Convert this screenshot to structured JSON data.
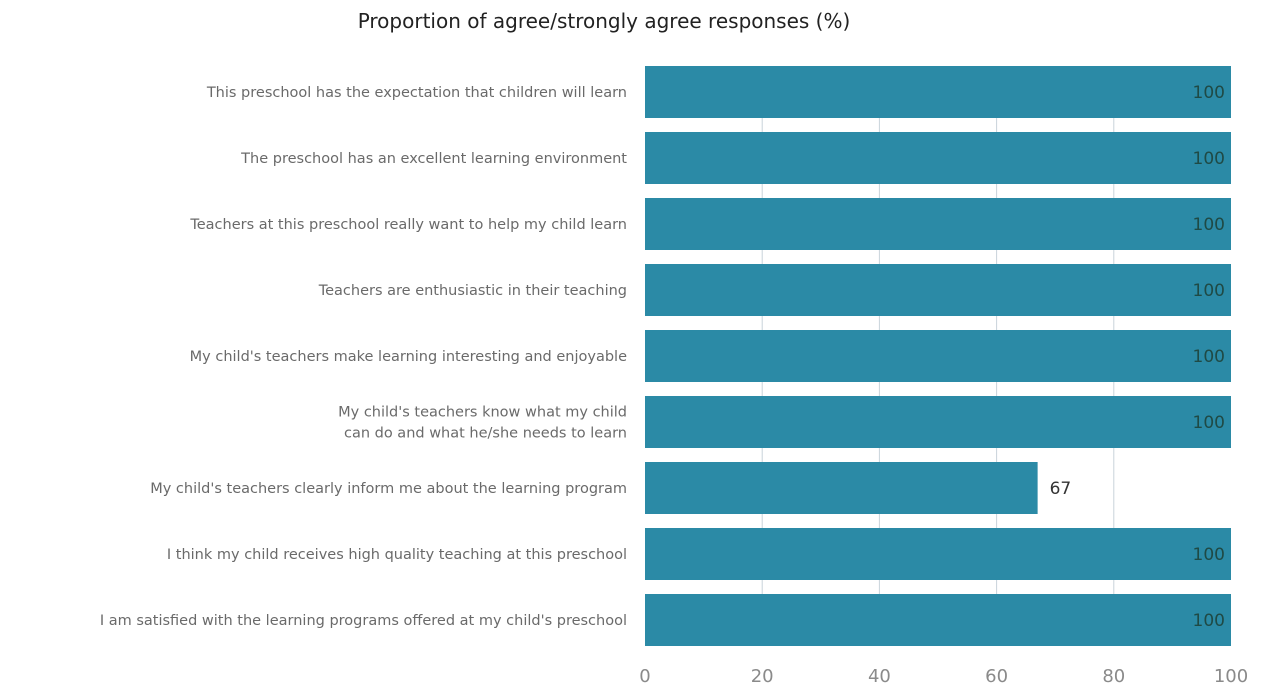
{
  "chart_data": {
    "type": "bar",
    "orientation": "horizontal",
    "title": "Proportion of agree/strongly agree responses (%)",
    "xlabel": "",
    "ylabel": "",
    "categories": [
      [
        "This preschool has the expectation that children will learn"
      ],
      [
        "The preschool has an excellent learning environment"
      ],
      [
        "Teachers at this preschool really want to help my child learn"
      ],
      [
        "Teachers are enthusiastic in their teaching"
      ],
      [
        "My child's teachers make learning interesting and enjoyable"
      ],
      [
        "My child's teachers know what my child",
        "can do and what he/she needs to learn"
      ],
      [
        "My child's teachers clearly inform me about the learning program"
      ],
      [
        "I think my child receives high quality teaching at this preschool"
      ],
      [
        "I am satisfied with the learning programs offered at my child's preschool"
      ]
    ],
    "values": [
      100,
      100,
      100,
      100,
      100,
      100,
      67,
      100,
      100
    ],
    "xlim": [
      0,
      100
    ],
    "xticks": [
      "0",
      "20",
      "40",
      "60",
      "80",
      "100"
    ],
    "grid": true,
    "legend": "none",
    "bar_color": "#2b8aa6"
  }
}
